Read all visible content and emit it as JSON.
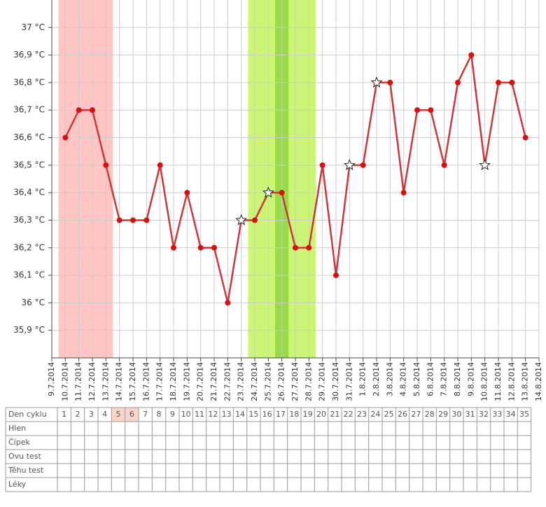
{
  "chart_data": {
    "type": "line",
    "categories": [
      "9.7.2014",
      "10.7.2014",
      "11.7.2014",
      "12.7.2014",
      "13.7.2014",
      "14.7.2014",
      "15.7.2014",
      "16.7.2014",
      "17.7.2014",
      "18.7.2014",
      "19.7.2014",
      "20.7.2014",
      "21.7.2014",
      "22.7.2014",
      "23.7.2014",
      "24.7.2014",
      "25.7.2014",
      "26.7.2014",
      "27.7.2014",
      "28.7.2014",
      "29.7.2014",
      "30.7.2014",
      "31.7.2014",
      "1.8.2014",
      "2.8.2014",
      "3.8.2014",
      "4.8.2014",
      "5.8.2014",
      "6.8.2014",
      "7.8.2014",
      "8.8.2014",
      "9.8.2014",
      "10.8.2014",
      "11.8.2014",
      "12.8.2014",
      "13.8.2014",
      "14.8.2014"
    ],
    "series": [
      {
        "color": "#c8383c",
        "marker_color": "#d81010",
        "values": [
          null,
          36.6,
          36.7,
          36.7,
          36.5,
          36.3,
          36.3,
          36.3,
          36.5,
          36.2,
          36.4,
          36.2,
          36.2,
          36.0,
          36.3,
          36.3,
          36.4,
          36.4,
          36.2,
          36.2,
          36.5,
          36.1,
          36.5,
          36.5,
          36.8,
          36.8,
          36.4,
          36.7,
          36.7,
          36.5,
          36.8,
          36.9,
          36.5,
          36.8,
          36.8,
          36.6,
          null
        ],
        "markers": [
          "dot",
          "dot",
          "dot",
          "dot",
          "dot",
          "dot",
          "dot",
          "dot",
          "dot",
          "dot",
          "dot",
          "dot",
          "dot",
          "dot",
          "star",
          "dot",
          "star",
          "dot",
          "dot",
          "dot",
          "dot",
          "dot",
          "star",
          "dot",
          "star",
          "dot",
          "dot",
          "dot",
          "dot",
          "dot",
          "dot",
          "dot",
          "star",
          "dot",
          "dot",
          "dot",
          "dot"
        ]
      }
    ],
    "bands": [
      {
        "start": 0.5,
        "end": 4.5,
        "color": "#ffc4c4"
      },
      {
        "start": 14.5,
        "end": 19.5,
        "color": "#ccf576"
      },
      {
        "start": 16.5,
        "end": 17.5,
        "color": "#96dd44"
      }
    ],
    "ylim": [
      35.8,
      37.1
    ],
    "yticks": [
      {
        "value": 35.9,
        "label": "35,9 °C"
      },
      {
        "value": 36,
        "label": "36 °C"
      },
      {
        "value": 36.1,
        "label": "36,1 °C"
      },
      {
        "value": 36.2,
        "label": "36,2 °C"
      },
      {
        "value": 36.3,
        "label": "36,3 °C"
      },
      {
        "value": 36.4,
        "label": "36,4 °C"
      },
      {
        "value": 36.5,
        "label": "36,5 °C"
      },
      {
        "value": 36.6,
        "label": "36,6 °C"
      },
      {
        "value": 36.7,
        "label": "36,7 °C"
      },
      {
        "value": 36.8,
        "label": "36,8 °C"
      },
      {
        "value": 36.9,
        "label": "36,9 °C"
      },
      {
        "value": 37,
        "label": "37 °C"
      }
    ],
    "grid": true
  },
  "table": {
    "row_labels": [
      "Den cyklu",
      "Hlen",
      "Čípek",
      "Ovu test",
      "Těhu test",
      "Léky"
    ],
    "days": [
      1,
      2,
      3,
      4,
      5,
      6,
      7,
      8,
      9,
      10,
      11,
      12,
      13,
      14,
      15,
      16,
      17,
      18,
      19,
      20,
      21,
      22,
      23,
      24,
      25,
      26,
      27,
      28,
      29,
      30,
      31,
      32,
      33,
      34,
      35
    ],
    "highlight_days": [
      5,
      6
    ]
  }
}
